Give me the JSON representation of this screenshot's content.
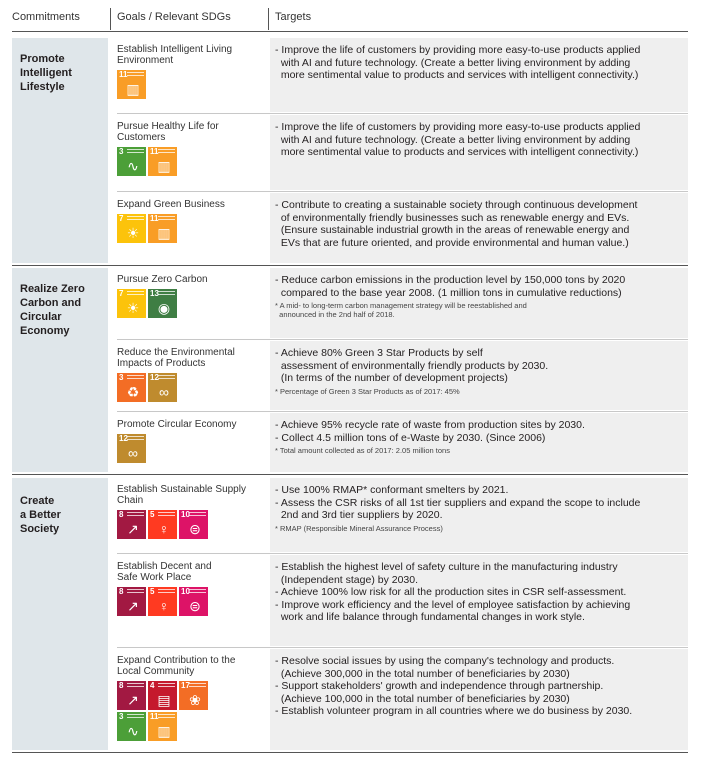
{
  "header": {
    "commitments": "Commitments",
    "goals": "Goals / Relevant SDGs",
    "targets": "Targets"
  },
  "sections": [
    {
      "title_lines": [
        "Promote",
        "Intelligent",
        "Lifestyle"
      ],
      "rows": [
        {
          "goal_lines": [
            "Establish Intelligent Living",
            "Environment"
          ],
          "sdgs": [
            {
              "num": "11",
              "color": "#f99d26",
              "icon": "city-icon"
            }
          ],
          "target_lines": [
            "- Improve the life of customers by providing more easy-to-use products applied",
            "  with AI and future technology. (Create a better living environment by adding",
            "  more sentimental value to products and services with intelligent connectivity.)"
          ],
          "notes": []
        },
        {
          "goal_lines": [
            "Pursue Healthy Life for",
            "Customers"
          ],
          "sdgs": [
            {
              "num": "3",
              "color": "#4c9f38",
              "icon": "heartbeat-icon"
            },
            {
              "num": "11",
              "color": "#f99d26",
              "icon": "city-icon"
            }
          ],
          "target_lines": [
            "- Improve the life of customers by providing more easy-to-use products applied",
            "  with AI and future technology. (Create a better living environment by adding",
            "  more sentimental value to products and services with intelligent connectivity.)"
          ],
          "notes": []
        },
        {
          "goal_lines": [
            "Expand Green Business"
          ],
          "sdgs": [
            {
              "num": "7",
              "color": "#fcc30b",
              "icon": "sun-icon"
            },
            {
              "num": "11",
              "color": "#f99d26",
              "icon": "city-icon"
            }
          ],
          "target_lines": [
            "- Contribute to creating a sustainable society through continuous development",
            "  of environmentally friendly businesses such as renewable energy and EVs.",
            "  (Ensure sustainable industrial growth in the areas of renewable energy and",
            "  EVs that are future oriented, and provide environmental and human value.)"
          ],
          "notes": []
        }
      ]
    },
    {
      "title_lines": [
        "Realize Zero",
        "Carbon and",
        "Circular",
        "Economy"
      ],
      "rows": [
        {
          "goal_lines": [
            "Pursue Zero Carbon"
          ],
          "sdgs": [
            {
              "num": "7",
              "color": "#fcc30b",
              "icon": "sun-icon"
            },
            {
              "num": "13",
              "color": "#3f7e44",
              "icon": "eye-globe-icon"
            }
          ],
          "target_lines": [
            "- Reduce carbon emissions in the production level by 150,000 tons by 2020",
            "  compared to the base year 2008. (1 million tons in cumulative reductions)"
          ],
          "notes": [
            "* A mid- to long-term carbon management strategy will be reestablished and",
            "  announced in the 2nd half of 2018."
          ]
        },
        {
          "goal_lines": [
            "Reduce the Environmental",
            "Impacts of Products"
          ],
          "sdgs": [
            {
              "num": "3",
              "color": "#f36d25",
              "icon": "recycle-people-icon"
            },
            {
              "num": "12",
              "color": "#bf8b2e",
              "icon": "infinity-icon"
            }
          ],
          "target_lines": [
            "- Achieve 80% Green 3 Star Products by self",
            "  assessment of environmentally friendly products by 2030.",
            "  (In terms of the number of development projects)"
          ],
          "notes": [
            "* Percentage of Green 3 Star Products as of 2017: 45%"
          ]
        },
        {
          "goal_lines": [
            "Promote Circular Economy"
          ],
          "sdgs": [
            {
              "num": "12",
              "color": "#bf8b2e",
              "icon": "infinity-icon"
            }
          ],
          "target_lines": [
            "- Achieve 95% recycle rate of waste from production sites by 2030.",
            "- Collect 4.5 million tons of e-Waste by 2030. (Since 2006)"
          ],
          "notes": [
            "* Total amount collected as of 2017: 2.05 million tons"
          ]
        }
      ]
    },
    {
      "title_lines": [
        "Create",
        "a Better",
        "Society"
      ],
      "rows": [
        {
          "goal_lines": [
            "Establish Sustainable Supply",
            "Chain"
          ],
          "sdgs": [
            {
              "num": "8",
              "color": "#a21942",
              "icon": "growth-chart-icon"
            },
            {
              "num": "5",
              "color": "#ff3a21",
              "icon": "gender-icon"
            },
            {
              "num": "10",
              "color": "#dd1367",
              "icon": "equality-icon"
            }
          ],
          "target_lines": [
            "- Use 100% RMAP* conformant smelters by 2021.",
            "- Assess the CSR risks of all 1st tier suppliers and expand the scope to include",
            "  2nd and 3rd tier suppliers by 2020."
          ],
          "notes": [
            "* RMAP (Responsible Mineral Assurance Process)"
          ]
        },
        {
          "goal_lines": [
            "Establish Decent and",
            "Safe Work Place"
          ],
          "sdgs": [
            {
              "num": "8",
              "color": "#a21942",
              "icon": "growth-chart-icon"
            },
            {
              "num": "5",
              "color": "#ff3a21",
              "icon": "gender-icon"
            },
            {
              "num": "10",
              "color": "#dd1367",
              "icon": "equality-icon"
            }
          ],
          "target_lines": [
            "- Establish the highest level of safety culture in the manufacturing industry",
            "  (Independent stage) by 2030.",
            "- Achieve 100% low risk for all the production sites in CSR self-assessment.",
            "- Improve work efficiency and the level of employee satisfaction by achieving",
            "  work and life balance through fundamental changes in work style."
          ],
          "notes": []
        },
        {
          "goal_lines": [
            "Expand Contribution to the",
            "Local Community"
          ],
          "sdgs": [
            {
              "num": "8",
              "color": "#a21942",
              "icon": "growth-chart-icon"
            },
            {
              "num": "4",
              "color": "#c5192d",
              "icon": "book-icon"
            },
            {
              "num": "17",
              "color": "#f36d25",
              "icon": "partnership-icon"
            },
            {
              "num": "3",
              "color": "#4c9f38",
              "icon": "heartbeat-icon"
            },
            {
              "num": "11",
              "color": "#f99d26",
              "icon": "city-icon"
            }
          ],
          "target_lines": [
            "- Resolve social issues by using the company's technology and products.",
            "  (Achieve 300,000 in the total number of beneficiaries by 2030)",
            "- Support stakeholders' growth and independence through partnership.",
            "  (Achieve 100,000 in the total number of beneficiaries by 2030)",
            "- Establish volunteer program in all countries where we do business by 2030."
          ],
          "notes": []
        }
      ]
    }
  ]
}
